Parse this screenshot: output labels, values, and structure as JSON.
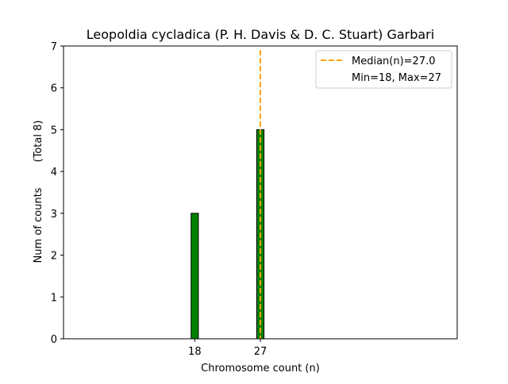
{
  "chart_data": {
    "type": "bar",
    "title": "Leopoldia cycladica (P. H. Davis & D. C. Stuart) Garbari",
    "xlabel": "Chromosome count (n)",
    "ylabel": "Num of counts",
    "ylabel_total": "(Total 8)",
    "xlim": [
      0,
      54
    ],
    "ylim": [
      0,
      7
    ],
    "xticks": [
      18,
      27
    ],
    "yticks": [
      0,
      1,
      2,
      3,
      4,
      5,
      6,
      7
    ],
    "bars": [
      {
        "x": 18,
        "value": 3
      },
      {
        "x": 27,
        "value": 5
      }
    ],
    "bar_width": 1,
    "zero_bin_range": [
      0,
      30.5
    ],
    "median": 27.0,
    "legend": {
      "placement": "top-right",
      "entries": [
        "Median(n)=27.0",
        "Min=18, Max=27"
      ]
    },
    "colors": {
      "bar": "#008000",
      "bar_edge": "#000000",
      "median": "#FFA500"
    }
  }
}
